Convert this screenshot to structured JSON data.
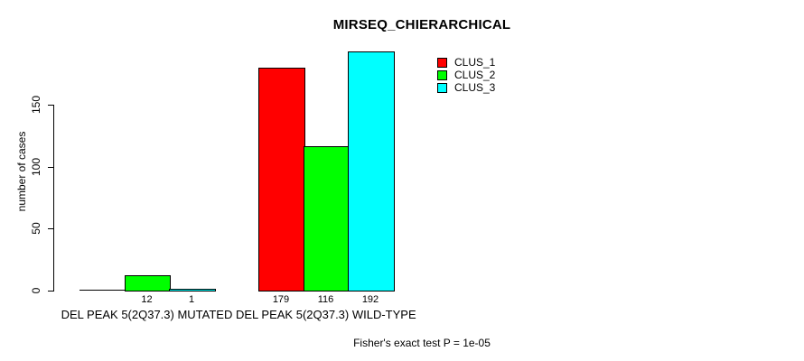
{
  "chart_data": {
    "type": "bar",
    "title": "MIRSEQ_CHIERARCHICAL",
    "ylabel": "number of cases",
    "xlabel": "",
    "subtitle": "Fisher's exact test P = 1e-05",
    "categories": [
      "DEL PEAK 5(2Q37.3) MUTATED",
      "DEL PEAK 5(2Q37.3) WILD-TYPE"
    ],
    "series": [
      {
        "name": "CLUS_1",
        "color": "#ff0000",
        "values": [
          0,
          179
        ]
      },
      {
        "name": "CLUS_2",
        "color": "#00ff00",
        "values": [
          12,
          116
        ]
      },
      {
        "name": "CLUS_3",
        "color": "#00ffff",
        "values": [
          1,
          192
        ]
      }
    ],
    "bar_value_labels": [
      [
        "",
        "12",
        "1"
      ],
      [
        "179",
        "116",
        "192"
      ]
    ],
    "yticks": [
      0,
      50,
      100,
      150
    ],
    "ylim": [
      0,
      192
    ],
    "grid": false,
    "legend_position": "top-right",
    "colors": {
      "axis": "#000000",
      "background": "#ffffff",
      "text": "#000000"
    }
  }
}
